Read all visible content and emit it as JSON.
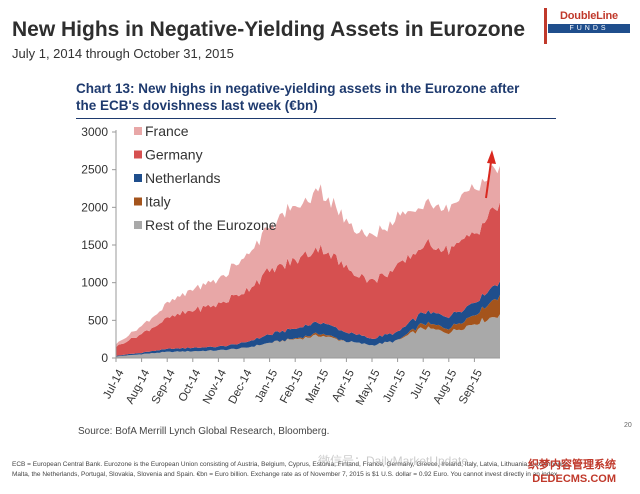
{
  "slide": {
    "title": "New Highs in Negative-Yielding Assets in Eurozone",
    "subtitle": "July 1, 2014 through October 31, 2015",
    "logo_top": "DoubleLine",
    "logo_bottom": "FUNDS",
    "page_number": "20"
  },
  "chart_heading": {
    "line1": "Chart 13: New highs in negative-yielding assets in the Eurozone after",
    "line2": "the ECB's dovishness last week (€bn)"
  },
  "source": "Source: BofA Merrill Lynch Global Research, Bloomberg.",
  "footnote": {
    "line1": "ECB = European Central Bank. Eurozone is the European Union consisting of Austria, Belgium, Cyprus, Estonia, Finland, France, Germany, Greece, Ireland, Italy, Latvia, Lithuania, Luxembourg,",
    "line2": "Malta, the Netherlands, Portugal, Slovakia, Slovenia and Spain. €bn = Euro billion. Exchange rate as of November 7, 2015 is $1 U.S. dollar = 0.92 Euro. You cannot invest directly in an index."
  },
  "watermark": "微信号：DailyMarketUpdate",
  "watermark2": {
    "line1": "织梦内容管理系统",
    "line2": "DEDECMS.COM"
  },
  "colors": {
    "France": "#e8a7a7",
    "Germany": "#d65050",
    "Netherlands": "#1f4e8c",
    "Italy": "#a4541c",
    "Rest of the Eurozone": "#a9a9a9",
    "arrow": "#d9281f",
    "title": "#2e2e2e",
    "chart_title": "#1e3a6e"
  },
  "chart_data": {
    "type": "area",
    "stacked": true,
    "x": [
      "Jul-14",
      "Aug-14",
      "Sep-14",
      "Oct-14",
      "Nov-14",
      "Dec-14",
      "Jan-15",
      "Feb-15",
      "Mar-15",
      "Apr-15",
      "May-15",
      "Jun-15",
      "Jul-15",
      "Aug-15",
      "Sep-15",
      "Oct-15"
    ],
    "x_tick_labels": [
      "Jul-14",
      "Aug-14",
      "Sep-14",
      "Oct-14",
      "Nov-14",
      "Dec-14",
      "Jan-15",
      "Feb-15",
      "Mar-15",
      "Apr-15",
      "May-15",
      "Jun-15",
      "Jul-15",
      "Aug-15",
      "Sep-15"
    ],
    "ylim": [
      0,
      3000
    ],
    "yticks": [
      0,
      500,
      1000,
      1500,
      2000,
      2500,
      3000
    ],
    "grid": false,
    "legend_position": "top-left, inside plot",
    "series": [
      {
        "name": "Rest of the Eurozone",
        "values": [
          20,
          50,
          80,
          90,
          100,
          130,
          200,
          250,
          300,
          220,
          170,
          230,
          400,
          340,
          460,
          580
        ]
      },
      {
        "name": "Italy",
        "values": [
          0,
          0,
          0,
          0,
          0,
          0,
          0,
          10,
          30,
          0,
          0,
          0,
          60,
          60,
          120,
          260
        ]
      },
      {
        "name": "Netherlands",
        "values": [
          10,
          20,
          40,
          45,
          50,
          70,
          110,
          130,
          150,
          120,
          90,
          110,
          150,
          150,
          160,
          180
        ]
      },
      {
        "name": "Germany",
        "values": [
          120,
          250,
          400,
          500,
          560,
          680,
          840,
          900,
          1000,
          850,
          760,
          850,
          880,
          900,
          920,
          1050
        ]
      },
      {
        "name": "France",
        "values": [
          40,
          100,
          190,
          270,
          330,
          450,
          600,
          700,
          760,
          620,
          580,
          660,
          550,
          560,
          620,
          480
        ]
      }
    ],
    "annotation": "upward red arrow at the end of October 2015"
  }
}
